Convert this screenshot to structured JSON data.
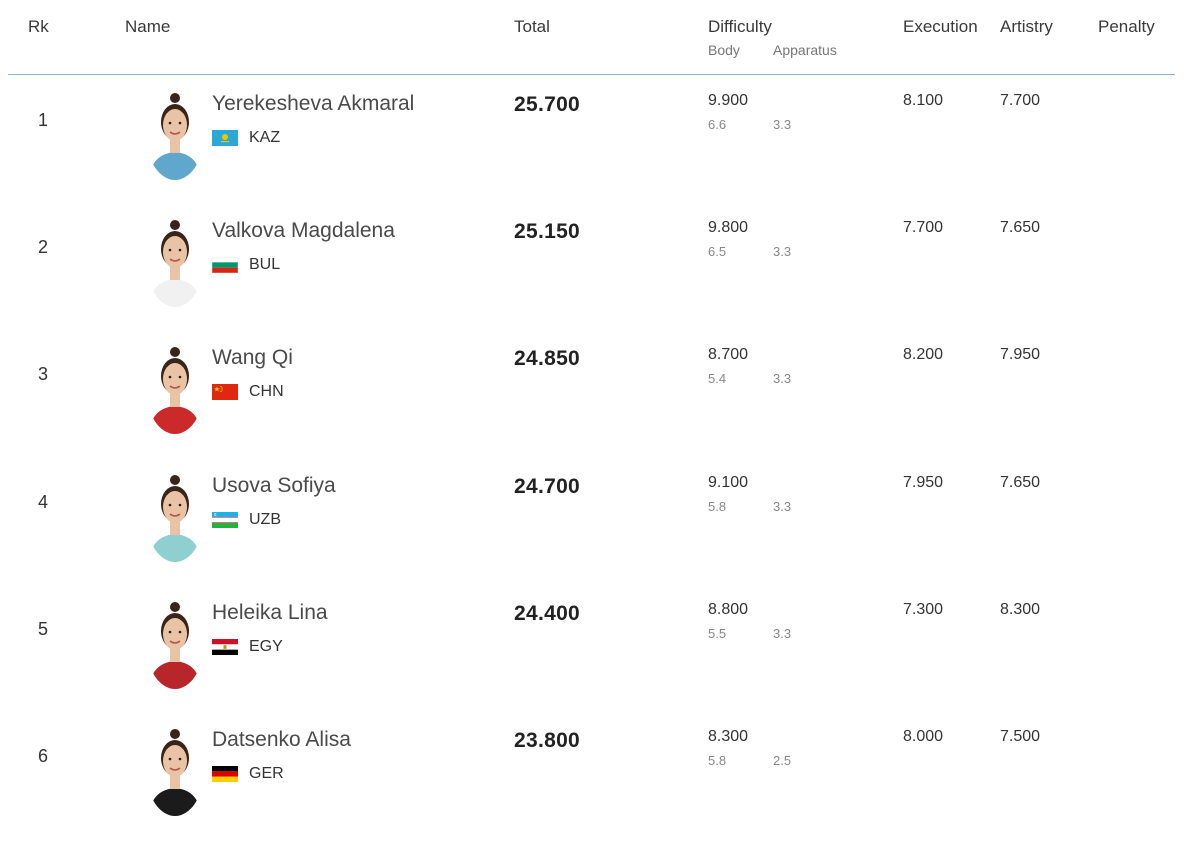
{
  "header": {
    "rank": "Rk",
    "name": "Name",
    "total": "Total",
    "difficulty": "Difficulty",
    "body": "Body",
    "apparatus": "Apparatus",
    "execution": "Execution",
    "artistry": "Artistry",
    "penalty": "Penalty"
  },
  "rows": [
    {
      "rank": "1",
      "name": "Yerekesheva Akmaral",
      "country": "KAZ",
      "total": "25.700",
      "difficulty": "9.900",
      "body": "6.6",
      "apparatus": "3.3",
      "execution": "8.100",
      "artistry": "7.700",
      "penalty": "",
      "shirt_color": "#5fa7cc",
      "flag_icon": "kazakhstan-flag-icon"
    },
    {
      "rank": "2",
      "name": "Valkova Magdalena",
      "country": "BUL",
      "total": "25.150",
      "difficulty": "9.800",
      "body": "6.5",
      "apparatus": "3.3",
      "execution": "7.700",
      "artistry": "7.650",
      "penalty": "",
      "shirt_color": "#f1f1f1",
      "flag_icon": "bulgaria-flag-icon"
    },
    {
      "rank": "3",
      "name": "Wang Qi",
      "country": "CHN",
      "total": "24.850",
      "difficulty": "8.700",
      "body": "5.4",
      "apparatus": "3.3",
      "execution": "8.200",
      "artistry": "7.950",
      "penalty": "",
      "shirt_color": "#cc2a2a",
      "flag_icon": "china-flag-icon"
    },
    {
      "rank": "4",
      "name": "Usova Sofiya",
      "country": "UZB",
      "total": "24.700",
      "difficulty": "9.100",
      "body": "5.8",
      "apparatus": "3.3",
      "execution": "7.950",
      "artistry": "7.650",
      "penalty": "",
      "shirt_color": "#8fcfcf",
      "flag_icon": "uzbekistan-flag-icon"
    },
    {
      "rank": "5",
      "name": "Heleika Lina",
      "country": "EGY",
      "total": "24.400",
      "difficulty": "8.800",
      "body": "5.5",
      "apparatus": "3.3",
      "execution": "7.300",
      "artistry": "8.300",
      "penalty": "",
      "shirt_color": "#b8262b",
      "flag_icon": "egypt-flag-icon"
    },
    {
      "rank": "6",
      "name": "Datsenko Alisa",
      "country": "GER",
      "total": "23.800",
      "difficulty": "8.300",
      "body": "5.8",
      "apparatus": "2.5",
      "execution": "8.000",
      "artistry": "7.500",
      "penalty": "",
      "shirt_color": "#1b1b1b",
      "flag_icon": "germany-flag-icon"
    }
  ],
  "colors": {
    "divider": "#8fb3c8",
    "skin": "#e9c3a6",
    "hair": "#3a2418"
  }
}
